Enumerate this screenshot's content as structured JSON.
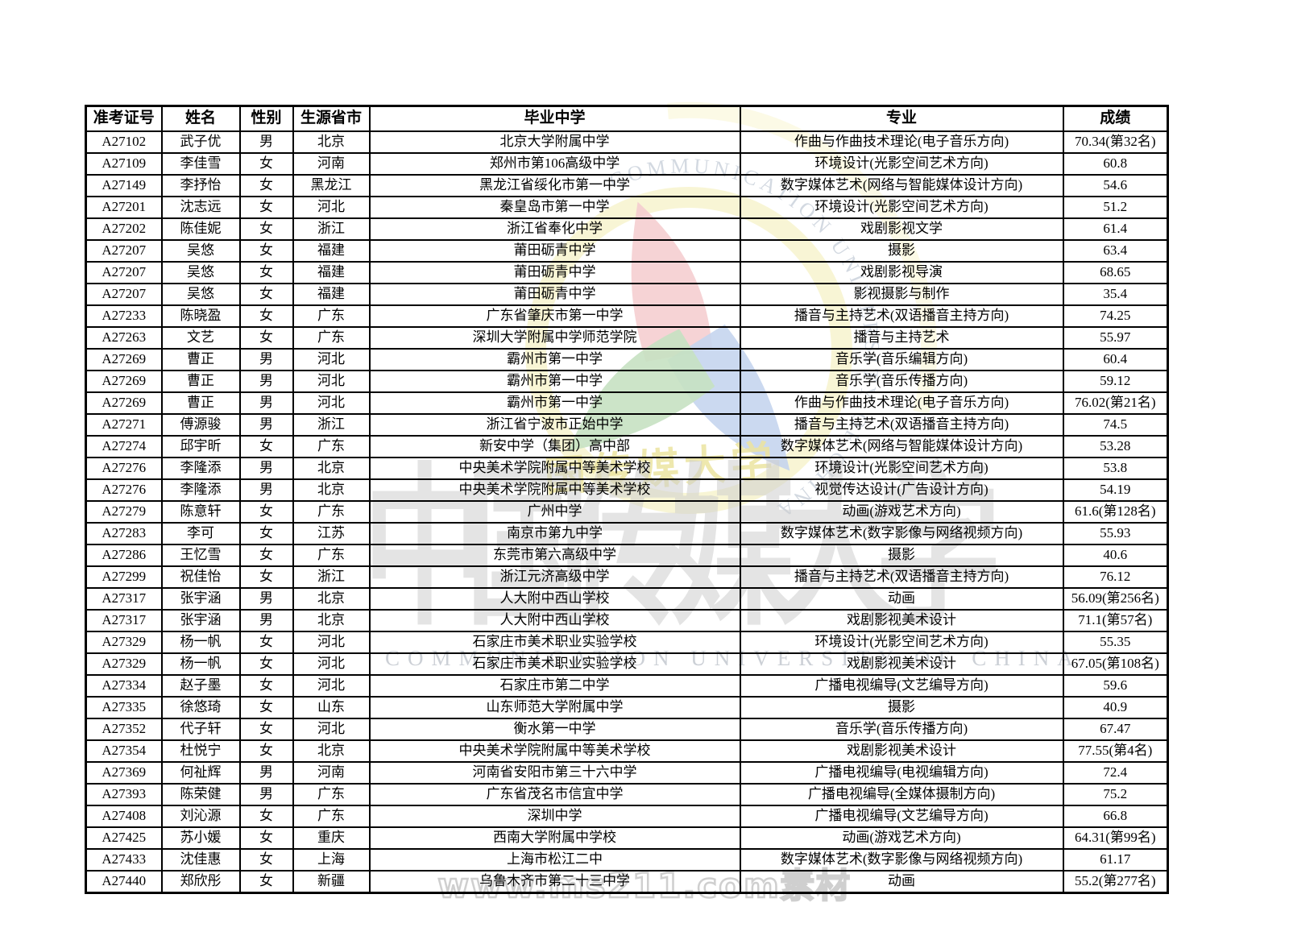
{
  "watermark": {
    "site": "www.ms211.com素材",
    "cjk_big": "中国传媒大学",
    "eng_caption": "COMMUNICATION UNIVERSITY OF CHINA",
    "seal_arc_text": "COMMUNICATION UNIVERSITY OF CHINA",
    "script_text": "国传媒大学",
    "colors": {
      "red_petal": "#f0b4b8",
      "blue_petal": "#a6bfe6",
      "green_petal": "#a9d2a2",
      "yellow_ring": "#f2ecaa",
      "arc_text_gray": "#bcc6d2"
    }
  },
  "table": {
    "headers": [
      "准考证号",
      "姓名",
      "性别",
      "生源省市",
      "毕业中学",
      "专业",
      "成绩"
    ],
    "rows": [
      [
        "A27102",
        "武子优",
        "男",
        "北京",
        "北京大学附属中学",
        "作曲与作曲技术理论(电子音乐方向)",
        "70.34(第32名)"
      ],
      [
        "A27109",
        "李佳雪",
        "女",
        "河南",
        "郑州市第106高级中学",
        "环境设计(光影空间艺术方向)",
        "60.8"
      ],
      [
        "A27149",
        "李抒怡",
        "女",
        "黑龙江",
        "黑龙江省绥化市第一中学",
        "数字媒体艺术(网络与智能媒体设计方向)",
        "54.6"
      ],
      [
        "A27201",
        "沈志远",
        "女",
        "河北",
        "秦皇岛市第一中学",
        "环境设计(光影空间艺术方向)",
        "51.2"
      ],
      [
        "A27202",
        "陈佳妮",
        "女",
        "浙江",
        "浙江省奉化中学",
        "戏剧影视文学",
        "61.4"
      ],
      [
        "A27207",
        "吴悠",
        "女",
        "福建",
        "莆田砺青中学",
        "摄影",
        "63.4"
      ],
      [
        "A27207",
        "吴悠",
        "女",
        "福建",
        "莆田砺青中学",
        "戏剧影视导演",
        "68.65"
      ],
      [
        "A27207",
        "吴悠",
        "女",
        "福建",
        "莆田砺青中学",
        "影视摄影与制作",
        "35.4"
      ],
      [
        "A27233",
        "陈晓盈",
        "女",
        "广东",
        "广东省肇庆市第一中学",
        "播音与主持艺术(双语播音主持方向)",
        "74.25"
      ],
      [
        "A27263",
        "文艺",
        "女",
        "广东",
        "深圳大学附属中学师范学院",
        "播音与主持艺术",
        "55.97"
      ],
      [
        "A27269",
        "曹正",
        "男",
        "河北",
        "霸州市第一中学",
        "音乐学(音乐编辑方向)",
        "60.4"
      ],
      [
        "A27269",
        "曹正",
        "男",
        "河北",
        "霸州市第一中学",
        "音乐学(音乐传播方向)",
        "59.12"
      ],
      [
        "A27269",
        "曹正",
        "男",
        "河北",
        "霸州市第一中学",
        "作曲与作曲技术理论(电子音乐方向)",
        "76.02(第21名)"
      ],
      [
        "A27271",
        "傅源骏",
        "男",
        "浙江",
        "浙江省宁波市正始中学",
        "播音与主持艺术(双语播音主持方向)",
        "74.5"
      ],
      [
        "A27274",
        "邱宇昕",
        "女",
        "广东",
        "新安中学（集团）高中部",
        "数字媒体艺术(网络与智能媒体设计方向)",
        "53.28"
      ],
      [
        "A27276",
        "李隆添",
        "男",
        "北京",
        "中央美术学院附属中等美术学校",
        "环境设计(光影空间艺术方向)",
        "53.8"
      ],
      [
        "A27276",
        "李隆添",
        "男",
        "北京",
        "中央美术学院附属中等美术学校",
        "视觉传达设计(广告设计方向)",
        "54.19"
      ],
      [
        "A27279",
        "陈意轩",
        "女",
        "广东",
        "广州中学",
        "动画(游戏艺术方向)",
        "61.6(第128名)"
      ],
      [
        "A27283",
        "李可",
        "女",
        "江苏",
        "南京市第九中学",
        "数字媒体艺术(数字影像与网络视频方向)",
        "55.93"
      ],
      [
        "A27286",
        "王忆雪",
        "女",
        "广东",
        "东莞市第六高级中学",
        "摄影",
        "40.6"
      ],
      [
        "A27299",
        "祝佳怡",
        "女",
        "浙江",
        "浙江元济高级中学",
        "播音与主持艺术(双语播音主持方向)",
        "76.12"
      ],
      [
        "A27317",
        "张宇涵",
        "男",
        "北京",
        "人大附中西山学校",
        "动画",
        "56.09(第256名)"
      ],
      [
        "A27317",
        "张宇涵",
        "男",
        "北京",
        "人大附中西山学校",
        "戏剧影视美术设计",
        "71.1(第57名)"
      ],
      [
        "A27329",
        "杨一帆",
        "女",
        "河北",
        "石家庄市美术职业实验学校",
        "环境设计(光影空间艺术方向)",
        "55.35"
      ],
      [
        "A27329",
        "杨一帆",
        "女",
        "河北",
        "石家庄市美术职业实验学校",
        "戏剧影视美术设计",
        "67.05(第108名)"
      ],
      [
        "A27334",
        "赵子墨",
        "女",
        "河北",
        "石家庄市第二中学",
        "广播电视编导(文艺编导方向)",
        "59.6"
      ],
      [
        "A27335",
        "徐悠琦",
        "女",
        "山东",
        "山东师范大学附属中学",
        "摄影",
        "40.9"
      ],
      [
        "A27352",
        "代子轩",
        "女",
        "河北",
        "衡水第一中学",
        "音乐学(音乐传播方向)",
        "67.47"
      ],
      [
        "A27354",
        "杜悦宁",
        "女",
        "北京",
        "中央美术学院附属中等美术学校",
        "戏剧影视美术设计",
        "77.55(第4名)"
      ],
      [
        "A27369",
        "何祉辉",
        "男",
        "河南",
        "河南省安阳市第三十六中学",
        "广播电视编导(电视编辑方向)",
        "72.4"
      ],
      [
        "A27393",
        "陈荣健",
        "男",
        "广东",
        "广东省茂名市信宜中学",
        "广播电视编导(全媒体摄制方向)",
        "75.2"
      ],
      [
        "A27408",
        "刘沁源",
        "女",
        "广东",
        "深圳中学",
        "广播电视编导(文艺编导方向)",
        "66.8"
      ],
      [
        "A27425",
        "苏小媛",
        "女",
        "重庆",
        "西南大学附属中学校",
        "动画(游戏艺术方向)",
        "64.31(第99名)"
      ],
      [
        "A27433",
        "沈佳惠",
        "女",
        "上海",
        "上海市松江二中",
        "数字媒体艺术(数字影像与网络视频方向)",
        "61.17"
      ],
      [
        "A27440",
        "郑欣彤",
        "女",
        "新疆",
        "乌鲁木齐市第二十三中学",
        "动画",
        "55.2(第277名)"
      ]
    ]
  }
}
